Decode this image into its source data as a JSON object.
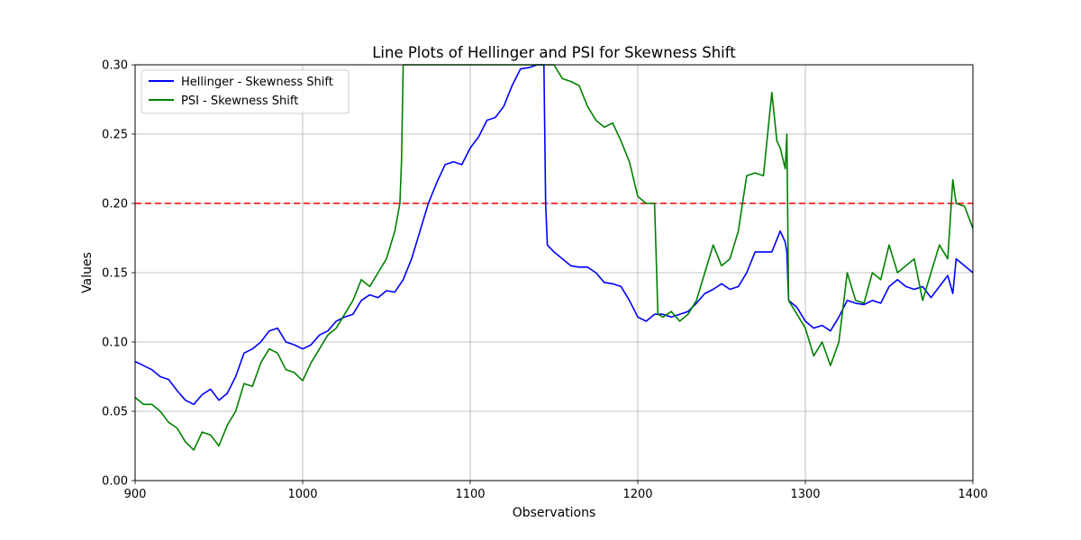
{
  "chart_data": {
    "type": "line",
    "title": "Line Plots of Hellinger and PSI for Skewness Shift",
    "xlabel": "Observations",
    "ylabel": "Values",
    "xlim": [
      900,
      1400
    ],
    "ylim": [
      0.0,
      0.3
    ],
    "xticks": [
      "900",
      "1000",
      "1100",
      "1200",
      "1300",
      "1400"
    ],
    "yticks": [
      "0.00",
      "0.05",
      "0.10",
      "0.15",
      "0.20",
      "0.25",
      "0.30"
    ],
    "grid": true,
    "legend_position": "upper-left",
    "threshold": {
      "value": 0.2,
      "color": "#ff0000",
      "style": "dashed"
    },
    "series": [
      {
        "name": "Hellinger - Skewness Shift",
        "color": "#0000ff",
        "x": [
          900,
          905,
          910,
          915,
          920,
          925,
          930,
          935,
          940,
          945,
          950,
          955,
          960,
          965,
          970,
          975,
          980,
          985,
          990,
          995,
          1000,
          1005,
          1010,
          1015,
          1020,
          1025,
          1030,
          1035,
          1040,
          1045,
          1050,
          1055,
          1060,
          1065,
          1070,
          1075,
          1080,
          1085,
          1090,
          1095,
          1100,
          1105,
          1110,
          1115,
          1120,
          1125,
          1130,
          1135,
          1140,
          1144,
          1145,
          1146,
          1150,
          1155,
          1160,
          1165,
          1170,
          1175,
          1180,
          1185,
          1190,
          1195,
          1200,
          1205,
          1210,
          1215,
          1220,
          1225,
          1230,
          1235,
          1240,
          1245,
          1250,
          1255,
          1260,
          1265,
          1270,
          1275,
          1280,
          1285,
          1288,
          1289,
          1290,
          1295,
          1300,
          1305,
          1310,
          1315,
          1320,
          1325,
          1330,
          1335,
          1340,
          1345,
          1350,
          1355,
          1360,
          1365,
          1370,
          1375,
          1380,
          1385,
          1388,
          1390,
          1395,
          1400
        ],
        "values": [
          0.086,
          0.083,
          0.08,
          0.075,
          0.073,
          0.065,
          0.058,
          0.055,
          0.062,
          0.066,
          0.058,
          0.063,
          0.075,
          0.092,
          0.095,
          0.1,
          0.108,
          0.11,
          0.1,
          0.098,
          0.095,
          0.098,
          0.105,
          0.108,
          0.115,
          0.118,
          0.12,
          0.13,
          0.134,
          0.132,
          0.137,
          0.136,
          0.145,
          0.16,
          0.18,
          0.2,
          0.215,
          0.228,
          0.23,
          0.228,
          0.24,
          0.248,
          0.26,
          0.262,
          0.27,
          0.285,
          0.297,
          0.298,
          0.3,
          0.3,
          0.2,
          0.17,
          0.165,
          0.16,
          0.155,
          0.154,
          0.154,
          0.15,
          0.143,
          0.142,
          0.14,
          0.13,
          0.118,
          0.115,
          0.12,
          0.12,
          0.118,
          0.12,
          0.122,
          0.128,
          0.135,
          0.138,
          0.142,
          0.138,
          0.14,
          0.15,
          0.165,
          0.165,
          0.165,
          0.18,
          0.172,
          0.165,
          0.13,
          0.125,
          0.115,
          0.11,
          0.112,
          0.108,
          0.118,
          0.13,
          0.128,
          0.127,
          0.13,
          0.128,
          0.14,
          0.145,
          0.14,
          0.138,
          0.14,
          0.132,
          0.14,
          0.148,
          0.135,
          0.16,
          0.155,
          0.15
        ]
      },
      {
        "name": "PSI - Skewness Shift",
        "color": "#008000",
        "x": [
          900,
          905,
          910,
          915,
          920,
          925,
          930,
          935,
          940,
          945,
          950,
          955,
          960,
          965,
          970,
          975,
          980,
          985,
          990,
          995,
          1000,
          1005,
          1010,
          1015,
          1020,
          1025,
          1030,
          1035,
          1040,
          1045,
          1050,
          1055,
          1058,
          1059,
          1060,
          1061,
          1150,
          1155,
          1160,
          1165,
          1170,
          1175,
          1180,
          1185,
          1190,
          1195,
          1200,
          1205,
          1210,
          1211,
          1212,
          1215,
          1220,
          1225,
          1230,
          1235,
          1240,
          1245,
          1250,
          1255,
          1260,
          1265,
          1270,
          1275,
          1280,
          1283,
          1285,
          1288,
          1289,
          1290,
          1295,
          1300,
          1305,
          1310,
          1315,
          1320,
          1325,
          1330,
          1335,
          1340,
          1345,
          1350,
          1355,
          1360,
          1365,
          1370,
          1375,
          1380,
          1385,
          1388,
          1390,
          1395,
          1400
        ],
        "values": [
          0.06,
          0.055,
          0.055,
          0.05,
          0.042,
          0.038,
          0.028,
          0.022,
          0.035,
          0.033,
          0.025,
          0.04,
          0.05,
          0.07,
          0.068,
          0.085,
          0.095,
          0.092,
          0.08,
          0.078,
          0.072,
          0.085,
          0.095,
          0.105,
          0.11,
          0.12,
          0.13,
          0.145,
          0.14,
          0.15,
          0.16,
          0.18,
          0.2,
          0.23,
          0.3,
          0.3,
          0.3,
          0.29,
          0.288,
          0.285,
          0.27,
          0.26,
          0.255,
          0.258,
          0.245,
          0.23,
          0.205,
          0.2,
          0.2,
          0.16,
          0.12,
          0.118,
          0.122,
          0.115,
          0.12,
          0.13,
          0.15,
          0.17,
          0.155,
          0.16,
          0.18,
          0.22,
          0.222,
          0.22,
          0.28,
          0.245,
          0.24,
          0.225,
          0.25,
          0.13,
          0.12,
          0.11,
          0.09,
          0.1,
          0.083,
          0.1,
          0.15,
          0.13,
          0.128,
          0.15,
          0.145,
          0.17,
          0.15,
          0.155,
          0.16,
          0.13,
          0.15,
          0.17,
          0.16,
          0.217,
          0.2,
          0.198,
          0.182
        ]
      }
    ]
  }
}
